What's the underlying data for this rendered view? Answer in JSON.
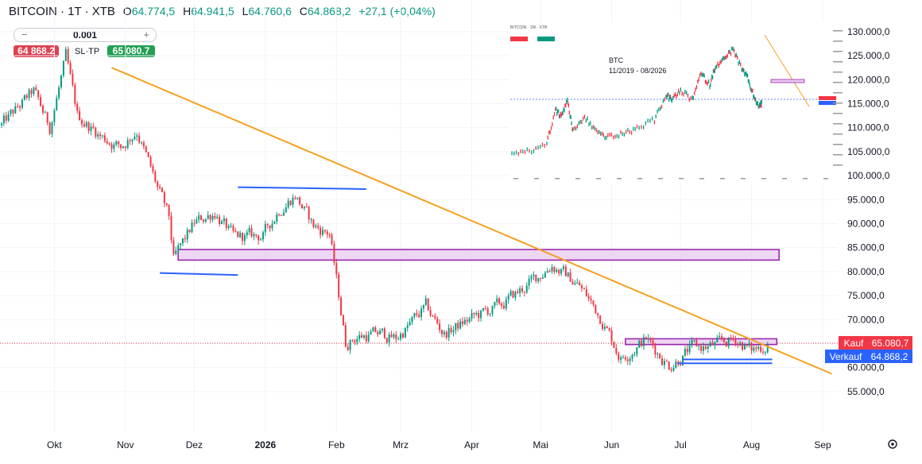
{
  "header": {
    "symbol": "BITCOIN · 1T · XTB",
    "open_label": "O",
    "open": "64.774,5",
    "high_label": "H",
    "high": "64.941,5",
    "low_label": "L",
    "low": "64.760,6",
    "close_label": "C",
    "close": "64.868,2",
    "change": "+27,1 (+0,04%)"
  },
  "trade_panel": {
    "quantity": "0.001",
    "minus": "−",
    "plus": "+",
    "sell_price": "64 868.2",
    "sl_tp": "SL·TP",
    "buy_price": "65 080.7"
  },
  "colors": {
    "up": "#089981",
    "down": "#f23645",
    "trendline": "#f7a021",
    "zone_fill": "#e8c9f0",
    "zone_border": "#9c27b0",
    "support": "#2962ff",
    "kauf": "#f23645",
    "verkauf": "#2962ff"
  },
  "price_tags": {
    "kauf_label": "Kauf",
    "kauf_value": "65.080,7",
    "verkauf_label": "Verkauf",
    "verkauf_value": "64.868,2"
  },
  "settings_icon": "gear-icon",
  "chart_data": {
    "type": "candlestick",
    "x_start": "2025-09-08",
    "x_ticks": [
      {
        "label": "Okt",
        "date": "2025-10-01",
        "bold": false
      },
      {
        "label": "Nov",
        "date": "2025-11-01",
        "bold": false
      },
      {
        "label": "Dez",
        "date": "2025-12-01",
        "bold": false
      },
      {
        "label": "2026",
        "date": "2026-01-01",
        "bold": true
      },
      {
        "label": "Feb",
        "date": "2026-02-01",
        "bold": false
      },
      {
        "label": "Mrz",
        "date": "2026-03-01",
        "bold": false
      },
      {
        "label": "Apr",
        "date": "2026-04-01",
        "bold": false
      },
      {
        "label": "Mai",
        "date": "2026-05-01",
        "bold": false
      },
      {
        "label": "Jun",
        "date": "2026-06-01",
        "bold": false
      },
      {
        "label": "Jul",
        "date": "2026-07-01",
        "bold": false
      },
      {
        "label": "Aug",
        "date": "2026-08-01",
        "bold": false
      },
      {
        "label": "Sep",
        "date": "2026-09-01",
        "bold": false
      }
    ],
    "y_ticks": [
      "130.000,0",
      "125.000,0",
      "120.000,0",
      "115.000,0",
      "110.000,0",
      "105.000,0",
      "100.000,0",
      "95.000,0",
      "90.000,0",
      "85.000,0",
      "80.000,0",
      "75.000,0",
      "70.000,0",
      "65.000,0",
      "60.000,0",
      "55.000,0"
    ],
    "y_tick_values": [
      130000,
      125000,
      120000,
      115000,
      110000,
      105000,
      100000,
      95000,
      90000,
      85000,
      80000,
      75000,
      70000,
      65000,
      60000,
      55000
    ],
    "ylim": [
      51000,
      132300
    ],
    "price_path": [
      {
        "date": "2025-09-08",
        "price": 110500
      },
      {
        "date": "2025-09-22",
        "price": 117500
      },
      {
        "date": "2025-09-29",
        "price": 110000
      },
      {
        "date": "2025-10-06",
        "price": 124500
      },
      {
        "date": "2025-10-11",
        "price": 112500
      },
      {
        "date": "2025-10-22",
        "price": 108000
      },
      {
        "date": "2025-10-30",
        "price": 106000
      },
      {
        "date": "2025-11-06",
        "price": 109500
      },
      {
        "date": "2025-11-13",
        "price": 100000
      },
      {
        "date": "2025-11-20",
        "price": 91000
      },
      {
        "date": "2025-11-22",
        "price": 82500
      },
      {
        "date": "2025-12-01",
        "price": 90000
      },
      {
        "date": "2025-12-10",
        "price": 92500
      },
      {
        "date": "2025-12-18",
        "price": 87000
      },
      {
        "date": "2025-12-31",
        "price": 87500
      },
      {
        "date": "2026-01-07",
        "price": 93000
      },
      {
        "date": "2026-01-14",
        "price": 96000
      },
      {
        "date": "2026-01-22",
        "price": 89500
      },
      {
        "date": "2026-01-29",
        "price": 88000
      },
      {
        "date": "2026-02-05",
        "price": 65000
      },
      {
        "date": "2026-02-10",
        "price": 66500
      },
      {
        "date": "2026-02-20",
        "price": 67000
      },
      {
        "date": "2026-02-27",
        "price": 66000
      },
      {
        "date": "2026-03-12",
        "price": 72500
      },
      {
        "date": "2026-03-20",
        "price": 67000
      },
      {
        "date": "2026-03-31",
        "price": 70000
      },
      {
        "date": "2026-04-14",
        "price": 73000
      },
      {
        "date": "2026-04-25",
        "price": 77000
      },
      {
        "date": "2026-05-06",
        "price": 81500
      },
      {
        "date": "2026-05-18",
        "price": 77000
      },
      {
        "date": "2026-05-28",
        "price": 70000
      },
      {
        "date": "2026-06-05",
        "price": 62000
      },
      {
        "date": "2026-06-16",
        "price": 66000
      },
      {
        "date": "2026-06-26",
        "price": 60500
      },
      {
        "date": "2026-07-06",
        "price": 64000
      },
      {
        "date": "2026-07-16",
        "price": 64500
      },
      {
        "date": "2026-07-25",
        "price": 66000
      },
      {
        "date": "2026-08-01",
        "price": 63500
      },
      {
        "date": "2026-08-08",
        "price": 64868
      }
    ],
    "drawings": {
      "trendline": {
        "from": {
          "date": "2025-10-26",
          "price": 122500
        },
        "to": {
          "date": "2026-09-05",
          "price": 58700
        }
      },
      "upper_zone": {
        "from_date": "2025-11-24",
        "to_date": "2026-08-13",
        "price_low": 82400,
        "price_high": 84600
      },
      "lower_zone": {
        "from_date": "2026-06-07",
        "to_date": "2026-08-12",
        "price_low": 64800,
        "price_high": 66000
      },
      "resistance_line": {
        "from": {
          "date": "2025-12-20",
          "price": 97600
        },
        "to": {
          "date": "2026-02-14",
          "price": 97200
        }
      },
      "support_line_low": {
        "from": {
          "date": "2025-11-16",
          "price": 79700
        },
        "to": {
          "date": "2025-12-20",
          "price": 79300
        }
      },
      "support_lines_recent": [
        {
          "from": {
            "date": "2026-07-02",
            "price": 61700
          },
          "to": {
            "date": "2026-08-10",
            "price": 61700
          }
        },
        {
          "from": {
            "date": "2026-06-30",
            "price": 60900
          },
          "to": {
            "date": "2026-08-10",
            "price": 60900
          }
        }
      ],
      "current_price_line": 65080.7
    },
    "inset": {
      "title": "BTC",
      "subtitle": "11/2019 - 08/2026",
      "header": "BITCOIN · 1W · XTB"
    }
  }
}
